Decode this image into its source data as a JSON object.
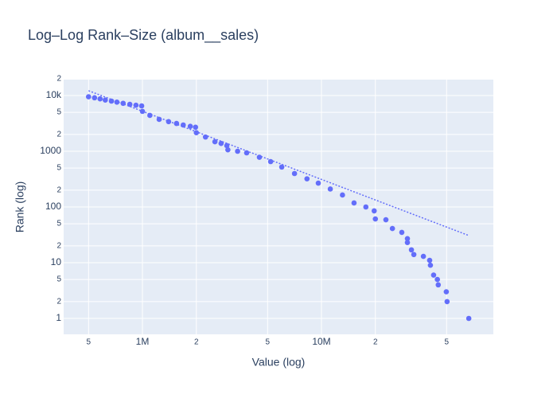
{
  "chart_data": {
    "type": "scatter",
    "title": "Log–Log Rank–Size (album__sales)",
    "x_label": "Value (log)",
    "y_label": "Rank (log)",
    "x_scale": "log",
    "y_scale": "log",
    "grid": true,
    "xlim": [
      363000,
      91200000
    ],
    "ylim": [
      0.518,
      19300
    ],
    "xticks": [
      {
        "value": 500000,
        "label": "5"
      },
      {
        "value": 1000000,
        "label": "1M"
      },
      {
        "value": 2000000,
        "label": "2"
      },
      {
        "value": 5000000,
        "label": "5"
      },
      {
        "value": 10000000,
        "label": "10M"
      },
      {
        "value": 20000000,
        "label": "2"
      },
      {
        "value": 50000000,
        "label": "5"
      }
    ],
    "yticks": [
      1,
      2,
      5,
      10,
      {
        "value": 20,
        "label": "2"
      },
      {
        "value": 50,
        "label": "5"
      },
      100,
      {
        "value": 200,
        "label": "2"
      },
      {
        "value": 500,
        "label": "5"
      },
      1000,
      {
        "value": 2000,
        "label": "2"
      },
      {
        "value": 5000,
        "label": "5"
      },
      {
        "value": 10000,
        "label": "10k"
      },
      {
        "value": 20000,
        "label": "2"
      }
    ],
    "series": [
      {
        "color": "#636efa",
        "mode": "markers",
        "x": [
          500000,
          540000,
          580000,
          620000,
          671000,
          720000,
          780000,
          850000,
          920000,
          990000,
          1000000,
          1100000,
          1240000,
          1400000,
          1550000,
          1690000,
          1850000,
          1980000,
          2000000,
          2250000,
          2540000,
          2750000,
          2960000,
          3000000,
          3400000,
          3820000,
          4500000,
          5200000,
          6000000,
          7070000,
          8300000,
          9600000,
          11200000,
          13100000,
          15200000,
          17700000,
          19700000,
          20000000,
          22900000,
          24900000,
          28100000,
          30200000,
          30200000,
          31800000,
          32800000,
          37100000,
          40200000,
          40600000,
          42300000,
          44400000,
          44900000,
          49800000,
          50300000,
          66500000
        ],
        "y": [
          9500,
          9100,
          8700,
          8300,
          7940,
          7600,
          7250,
          6950,
          6700,
          6520,
          5200,
          4400,
          3730,
          3400,
          3150,
          2960,
          2800,
          2700,
          2150,
          1800,
          1480,
          1380,
          1260,
          1060,
          1000,
          936,
          780,
          652,
          520,
          398,
          320,
          268,
          210,
          164,
          118,
          100,
          85,
          61,
          59,
          41,
          35,
          27,
          23,
          17,
          14,
          13,
          11,
          9,
          6,
          5,
          4,
          3,
          2,
          1
        ]
      },
      {
        "color": "#636efa",
        "mode": "dotted-line",
        "x": [
          500000,
          66000000
        ],
        "y": [
          12200,
          31
        ]
      }
    ]
  }
}
